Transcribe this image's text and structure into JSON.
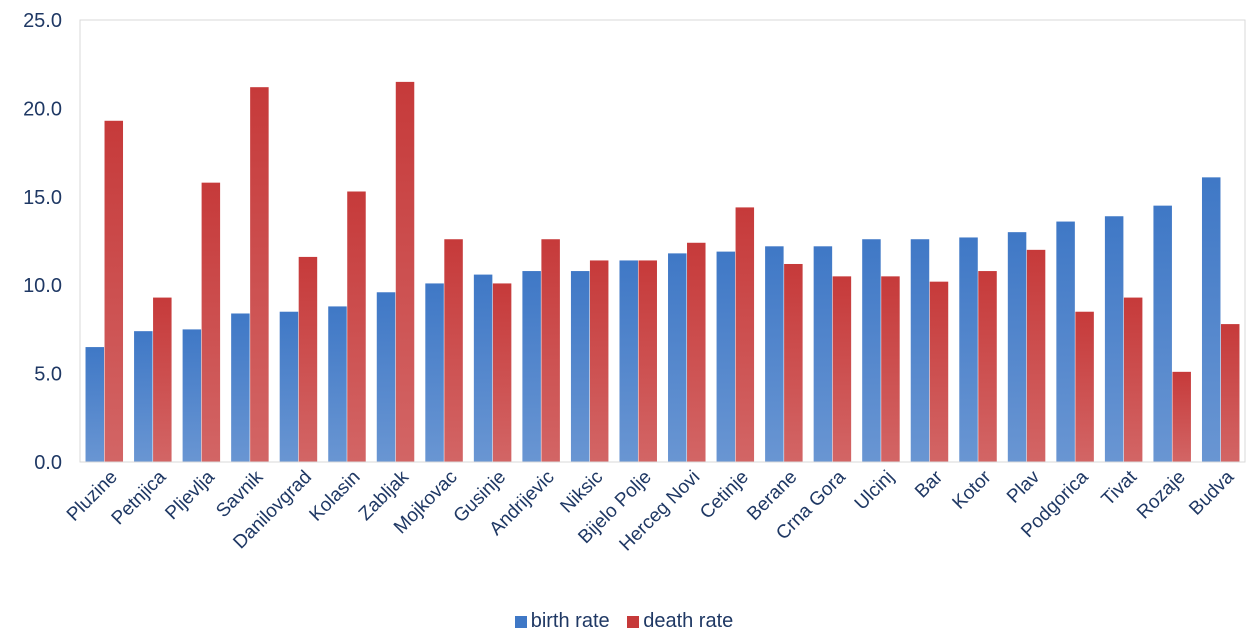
{
  "chart_data": {
    "type": "bar",
    "categories": [
      "Pluzine",
      "Petnjica",
      "Pljevlja",
      "Savnik",
      "Danilovgrad",
      "Kolasin",
      "Zabljak",
      "Mojkovac",
      "Gusinje",
      "Andrijevic",
      "Niksic",
      "Bijelo Polje",
      "Herceg Novi",
      "Cetinje",
      "Berane",
      "Crna Gora",
      "Ulcinj",
      "Bar",
      "Kotor",
      "Plav",
      "Podgorica",
      "Tivat",
      "Rozaje",
      "Budva"
    ],
    "series": [
      {
        "name": "birth rate",
        "color": "#3f78c6",
        "values": [
          6.5,
          7.4,
          7.5,
          8.4,
          8.5,
          8.8,
          9.6,
          10.1,
          10.6,
          10.8,
          10.8,
          11.4,
          11.8,
          11.9,
          12.2,
          12.2,
          12.6,
          12.6,
          12.7,
          13.0,
          13.6,
          13.9,
          14.5,
          16.1
        ]
      },
      {
        "name": "death rate",
        "color": "#c63a3a",
        "values": [
          19.3,
          9.3,
          15.8,
          21.2,
          11.6,
          15.3,
          21.5,
          12.6,
          10.1,
          12.6,
          11.4,
          11.4,
          12.4,
          14.4,
          11.2,
          10.5,
          10.5,
          10.2,
          10.8,
          12.0,
          8.5,
          9.3,
          5.1,
          7.8
        ]
      }
    ],
    "yticks": [
      "0.0",
      "5.0",
      "10.0",
      "15.0",
      "20.0",
      "25.0"
    ],
    "ylim": [
      0,
      25
    ],
    "grid": false,
    "legend_position": "bottom"
  }
}
